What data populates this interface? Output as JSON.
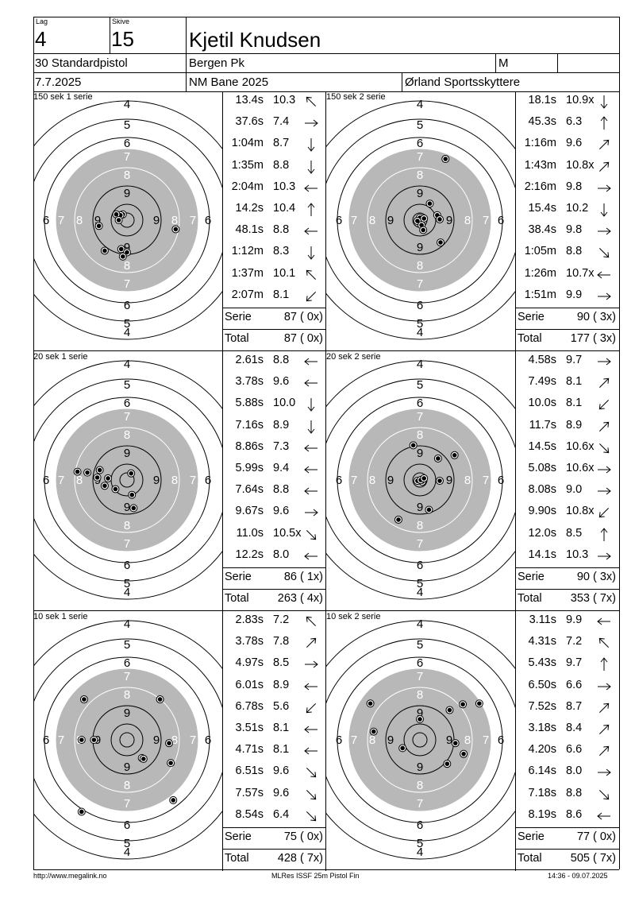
{
  "header": {
    "lag_label": "Lag",
    "lag_value": "4",
    "skive_label": "Skive",
    "skive_value": "15",
    "name": "Kjetil Knudsen",
    "class": "30 Standardpistol",
    "club": "Bergen Pk",
    "gender": "M",
    "date": "7.7.2025",
    "event": "NM Bane 2025",
    "host": "Ørland Sportsskyttere"
  },
  "target_rings": [
    "4",
    "5",
    "6",
    "7",
    "8",
    "9"
  ],
  "target_side_labels": [
    "6",
    "7",
    "8",
    "9",
    "9",
    "8",
    "7",
    "6"
  ],
  "panels": [
    {
      "title": "150 sek 1 serie",
      "shots": [
        {
          "time": "13.4s",
          "score": "10.3",
          "arrow": "nw"
        },
        {
          "time": "37.6s",
          "score": "7.4",
          "arrow": "e"
        },
        {
          "time": "1:04m",
          "score": "8.7",
          "arrow": "s"
        },
        {
          "time": "1:35m",
          "score": "8.8",
          "arrow": "s"
        },
        {
          "time": "2:04m",
          "score": "10.3",
          "arrow": "w"
        },
        {
          "time": "14.2s",
          "score": "10.4",
          "arrow": "n"
        },
        {
          "time": "48.1s",
          "score": "8.8",
          "arrow": "w"
        },
        {
          "time": "1:12m",
          "score": "8.3",
          "arrow": "s"
        },
        {
          "time": "1:37m",
          "score": "10.1",
          "arrow": "nw"
        },
        {
          "time": "2:07m",
          "score": "8.1",
          "arrow": "sw"
        }
      ],
      "serie_label": "Serie",
      "serie_value": "87 ( 0x)",
      "total_label": "Total",
      "total_value": "87 ( 0x)",
      "hits": [
        [
          -0.05,
          0.07
        ],
        [
          -0.08,
          0.06
        ],
        [
          -0.13,
          0.07
        ],
        [
          -0.1,
          0.0
        ],
        [
          -0.34,
          -0.07
        ],
        [
          0.59,
          -0.11
        ],
        [
          -0.27,
          -0.37
        ],
        [
          -0.07,
          -0.35
        ],
        [
          0.0,
          -0.39
        ],
        [
          -0.05,
          -0.44
        ]
      ]
    },
    {
      "title": "150 sek 2 serie",
      "shots": [
        {
          "time": "18.1s",
          "score": "10.9x",
          "arrow": "s"
        },
        {
          "time": "45.3s",
          "score": "6.3",
          "arrow": "n"
        },
        {
          "time": "1:16m",
          "score": "9.6",
          "arrow": "ne"
        },
        {
          "time": "1:43m",
          "score": "10.8x",
          "arrow": "ne"
        },
        {
          "time": "2:16m",
          "score": "9.8",
          "arrow": "e"
        },
        {
          "time": "15.4s",
          "score": "10.2",
          "arrow": "s"
        },
        {
          "time": "38.4s",
          "score": "9.8",
          "arrow": "e"
        },
        {
          "time": "1:05m",
          "score": "8.8",
          "arrow": "se"
        },
        {
          "time": "1:26m",
          "score": "10.7x",
          "arrow": "w"
        },
        {
          "time": "1:51m",
          "score": "9.9",
          "arrow": "e"
        }
      ],
      "serie_label": "Serie",
      "serie_value": "90 ( 3x)",
      "total_label": "Total",
      "total_value": "177 ( 3x)",
      "hits": [
        [
          0.0,
          0.03
        ],
        [
          0.05,
          0.02
        ],
        [
          -0.03,
          -0.01
        ],
        [
          0.02,
          -0.06
        ],
        [
          0.12,
          0.2
        ],
        [
          0.21,
          0.06
        ],
        [
          0.24,
          0.01
        ],
        [
          0.04,
          -0.12
        ],
        [
          0.25,
          -0.27
        ],
        [
          0.31,
          0.74
        ]
      ]
    },
    {
      "title": "20 sek 1 serie",
      "shots": [
        {
          "time": "2.61s",
          "score": "8.8",
          "arrow": "w"
        },
        {
          "time": "3.78s",
          "score": "9.6",
          "arrow": "w"
        },
        {
          "time": "5.88s",
          "score": "10.0",
          "arrow": "s"
        },
        {
          "time": "7.16s",
          "score": "8.9",
          "arrow": "s"
        },
        {
          "time": "8.86s",
          "score": "7.3",
          "arrow": "w"
        },
        {
          "time": "5.99s",
          "score": "9.4",
          "arrow": "w"
        },
        {
          "time": "7.64s",
          "score": "8.8",
          "arrow": "w"
        },
        {
          "time": "9.67s",
          "score": "9.6",
          "arrow": "e"
        },
        {
          "time": "11.0s",
          "score": "10.5x",
          "arrow": "se"
        },
        {
          "time": "12.2s",
          "score": "8.0",
          "arrow": "w"
        }
      ],
      "serie_label": "Serie",
      "serie_value": "86 ( 1x)",
      "total_label": "Total",
      "total_value": "263 ( 4x)",
      "hits": [
        [
          -0.6,
          0.1
        ],
        [
          -0.48,
          0.09
        ],
        [
          -0.33,
          0.12
        ],
        [
          -0.36,
          0.03
        ],
        [
          -0.23,
          0.02
        ],
        [
          -0.27,
          -0.07
        ],
        [
          0.05,
          0.08
        ],
        [
          0.06,
          -0.18
        ],
        [
          0.08,
          -0.34
        ],
        [
          -0.14,
          -0.11
        ]
      ]
    },
    {
      "title": "20 sek 2 serie",
      "shots": [
        {
          "time": "4.58s",
          "score": "9.7",
          "arrow": "e"
        },
        {
          "time": "7.49s",
          "score": "8.1",
          "arrow": "ne"
        },
        {
          "time": "10.0s",
          "score": "8.1",
          "arrow": "sw"
        },
        {
          "time": "11.7s",
          "score": "8.9",
          "arrow": "ne"
        },
        {
          "time": "14.5s",
          "score": "10.6x",
          "arrow": "se"
        },
        {
          "time": "5.08s",
          "score": "10.6x",
          "arrow": "e"
        },
        {
          "time": "8.08s",
          "score": "9.0",
          "arrow": "e"
        },
        {
          "time": "9.90s",
          "score": "10.8x",
          "arrow": "sw"
        },
        {
          "time": "12.0s",
          "score": "8.5",
          "arrow": "n"
        },
        {
          "time": "14.1s",
          "score": "10.3",
          "arrow": "e"
        }
      ],
      "serie_label": "Serie",
      "serie_value": "90 ( 3x)",
      "total_label": "Total",
      "total_value": "353 ( 7x)",
      "hits": [
        [
          -0.08,
          0.42
        ],
        [
          0.22,
          0.26
        ],
        [
          0.42,
          0.3
        ],
        [
          0.24,
          -0.01
        ],
        [
          -0.03,
          -0.01
        ],
        [
          0.03,
          -0.02
        ],
        [
          0.01,
          0.0
        ],
        [
          0.11,
          -0.36
        ],
        [
          -0.26,
          -0.48
        ],
        [
          0.05,
          0.02
        ]
      ]
    },
    {
      "title": "10 sek 1 serie",
      "shots": [
        {
          "time": "2.83s",
          "score": "7.2",
          "arrow": "nw"
        },
        {
          "time": "3.78s",
          "score": "7.8",
          "arrow": "ne"
        },
        {
          "time": "4.97s",
          "score": "8.5",
          "arrow": "e"
        },
        {
          "time": "6.01s",
          "score": "8.9",
          "arrow": "w"
        },
        {
          "time": "6.78s",
          "score": "5.6",
          "arrow": "sw"
        },
        {
          "time": "3.51s",
          "score": "8.1",
          "arrow": "w"
        },
        {
          "time": "4.71s",
          "score": "8.1",
          "arrow": "w"
        },
        {
          "time": "6.51s",
          "score": "9.6",
          "arrow": "se"
        },
        {
          "time": "7.57s",
          "score": "9.6",
          "arrow": "se"
        },
        {
          "time": "8.54s",
          "score": "6.4",
          "arrow": "se"
        }
      ],
      "serie_label": "Serie",
      "serie_value": "75 ( 0x)",
      "total_label": "Total",
      "total_value": "428 ( 7x)",
      "hits": [
        [
          -0.52,
          0.49
        ],
        [
          0.4,
          0.49
        ],
        [
          -0.55,
          0.0
        ],
        [
          0.51,
          -0.04
        ],
        [
          0.18,
          -0.22
        ],
        [
          0.2,
          -0.23
        ],
        [
          0.53,
          -0.28
        ],
        [
          0.56,
          -0.73
        ],
        [
          -0.55,
          -0.87
        ],
        [
          -0.4,
          0.0
        ]
      ]
    },
    {
      "title": "10 sek 2 serie",
      "shots": [
        {
          "time": "3.11s",
          "score": "9.9",
          "arrow": "w"
        },
        {
          "time": "4.31s",
          "score": "7.2",
          "arrow": "nw"
        },
        {
          "time": "5.43s",
          "score": "9.7",
          "arrow": "n"
        },
        {
          "time": "6.50s",
          "score": "6.6",
          "arrow": "e"
        },
        {
          "time": "7.52s",
          "score": "8.7",
          "arrow": "ne"
        },
        {
          "time": "3.18s",
          "score": "8.4",
          "arrow": "ne"
        },
        {
          "time": "4.20s",
          "score": "6.6",
          "arrow": "ne"
        },
        {
          "time": "6.14s",
          "score": "8.0",
          "arrow": "e"
        },
        {
          "time": "7.18s",
          "score": "8.8",
          "arrow": "se"
        },
        {
          "time": "8.19s",
          "score": "8.6",
          "arrow": "w"
        }
      ],
      "serie_label": "Serie",
      "serie_value": "77 ( 0x)",
      "total_label": "Total",
      "total_value": "505 ( 7x)",
      "hits": [
        [
          0.0,
          0.25
        ],
        [
          -0.56,
          0.1
        ],
        [
          -0.21,
          -0.1
        ],
        [
          0.36,
          0.36
        ],
        [
          0.52,
          0.43
        ],
        [
          0.72,
          0.44
        ],
        [
          0.43,
          -0.04
        ],
        [
          0.53,
          -0.17
        ],
        [
          0.33,
          -0.29
        ],
        [
          -0.6,
          0.44
        ]
      ]
    }
  ],
  "footer": {
    "left": "http://www.megalink.no",
    "center": "MLRes ISSF 25m Pistol Fin",
    "right": "14:36 - 09.07.2025"
  }
}
